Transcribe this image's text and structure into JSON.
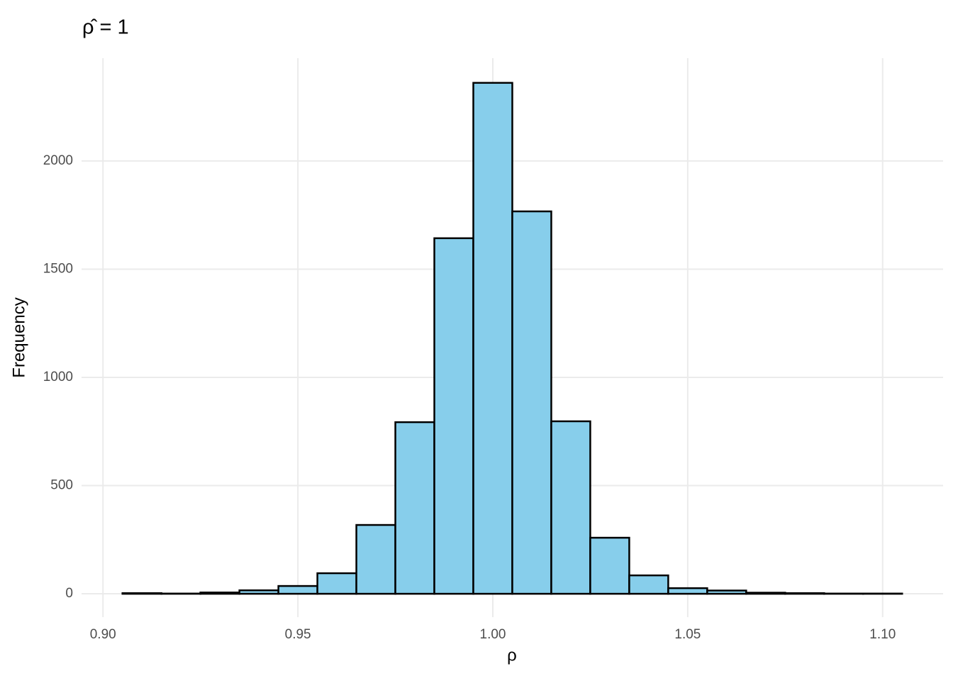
{
  "chart_data": {
    "type": "histogram",
    "title": "ρ̂ = 1",
    "x_label": "ρ",
    "y_label": "Frequency",
    "bins": [
      0.905,
      0.915,
      0.925,
      0.935,
      0.945,
      0.955,
      0.965,
      0.975,
      0.985,
      0.995,
      1.005,
      1.015,
      1.025,
      1.035,
      1.045,
      1.055,
      1.065,
      1.075,
      1.085,
      1.095,
      1.105
    ],
    "values": [
      3,
      1,
      6,
      16,
      36,
      95,
      318,
      793,
      1643,
      2361,
      1767,
      797,
      259,
      85,
      26,
      15,
      5,
      3,
      1,
      1
    ],
    "color": "#87ceeb",
    "edge_color": "#000000",
    "xlim": [
      0.8945,
      1.1155
    ],
    "ylim": [
      -108,
      2475
    ],
    "xticks": [
      {
        "value": 0.9,
        "label": "0.90"
      },
      0.95,
      {
        "value": 1,
        "label": "1.00"
      },
      1.05,
      {
        "value": 1.1,
        "label": "1.10"
      }
    ],
    "yticks": [
      0,
      500,
      1000,
      1500,
      2000
    ],
    "grid": true
  }
}
